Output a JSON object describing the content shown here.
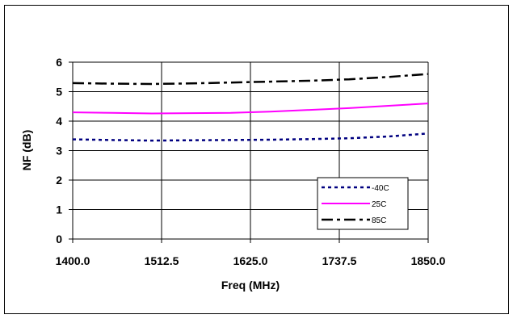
{
  "chart_data": {
    "type": "line",
    "xlabel": "Freq (MHz)",
    "ylabel": "NF (dB)",
    "xlim": [
      1400,
      1850
    ],
    "ylim": [
      0,
      6
    ],
    "x_ticks": [
      1400,
      1512.5,
      1625,
      1737.5,
      1850
    ],
    "x_tick_labels": [
      "1400.0",
      "1512.5",
      "1625.0",
      "1737.5",
      "1850.0"
    ],
    "y_ticks": [
      0,
      1,
      2,
      3,
      4,
      5,
      6
    ],
    "y_tick_labels": [
      "0",
      "1",
      "2",
      "3",
      "4",
      "5",
      "6"
    ],
    "grid": "horizontal and vertical",
    "legend_position": "bottom-right",
    "series": [
      {
        "name": "-40C",
        "color": "#000080",
        "style": "dotted",
        "x": [
          1400,
          1450,
          1500,
          1550,
          1600,
          1650,
          1700,
          1750,
          1800,
          1850
        ],
        "y": [
          3.38,
          3.36,
          3.34,
          3.35,
          3.36,
          3.37,
          3.39,
          3.42,
          3.48,
          3.58
        ]
      },
      {
        "name": "25C",
        "color": "#ff00ff",
        "style": "solid",
        "x": [
          1400,
          1450,
          1500,
          1550,
          1600,
          1650,
          1700,
          1750,
          1800,
          1850
        ],
        "y": [
          4.3,
          4.28,
          4.26,
          4.27,
          4.28,
          4.32,
          4.38,
          4.44,
          4.52,
          4.6
        ]
      },
      {
        "name": "85C",
        "color": "#000000",
        "style": "dash-dot",
        "x": [
          1400,
          1450,
          1500,
          1550,
          1600,
          1650,
          1700,
          1750,
          1800,
          1850
        ],
        "y": [
          5.29,
          5.27,
          5.26,
          5.28,
          5.31,
          5.34,
          5.37,
          5.42,
          5.5,
          5.6
        ]
      }
    ]
  }
}
